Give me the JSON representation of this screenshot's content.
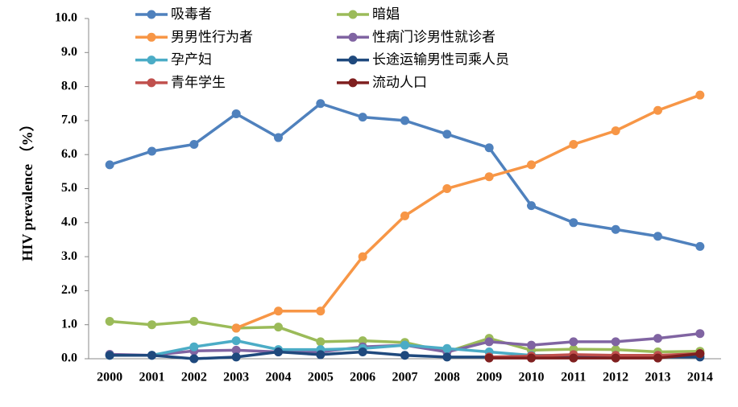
{
  "chart_data": {
    "type": "line",
    "y_label": "HIV prevalence （%）",
    "categories": [
      "2000",
      "2001",
      "2002",
      "2003",
      "2004",
      "2005",
      "2006",
      "2007",
      "2008",
      "2009",
      "2010",
      "2011",
      "2012",
      "2013",
      "2014"
    ],
    "ylim": [
      0,
      10
    ],
    "yticks": [
      {
        "value": 0,
        "label": "0.0"
      },
      {
        "value": 1,
        "label": "1.0"
      },
      {
        "value": 2,
        "label": "2.0"
      },
      {
        "value": 3,
        "label": "3.0"
      },
      {
        "value": 4,
        "label": "4.0"
      },
      {
        "value": 5,
        "label": "5.0"
      },
      {
        "value": 6,
        "label": "6.0"
      },
      {
        "value": 7,
        "label": "7.0"
      },
      {
        "value": 8,
        "label": "8.0"
      },
      {
        "value": 9,
        "label": "9.0"
      },
      {
        "value": 10,
        "label": "10.0"
      }
    ],
    "series": [
      {
        "name": "吸毒者",
        "color": "#4f81bd",
        "values": [
          5.7,
          6.1,
          6.3,
          7.2,
          6.5,
          7.5,
          7.1,
          7.0,
          6.6,
          6.2,
          4.5,
          4.0,
          3.8,
          3.6,
          3.3
        ]
      },
      {
        "name": "暗娼",
        "color": "#9bbb59",
        "values": [
          1.1,
          1.0,
          1.1,
          0.9,
          0.93,
          0.5,
          0.53,
          0.48,
          0.2,
          0.6,
          0.25,
          0.28,
          0.27,
          0.2,
          0.22
        ]
      },
      {
        "name": "男男性行为者",
        "color": "#f79646",
        "values": [
          null,
          null,
          null,
          0.9,
          1.4,
          1.4,
          3.0,
          4.2,
          5.0,
          5.35,
          5.7,
          6.3,
          6.7,
          7.3,
          7.75
        ]
      },
      {
        "name": "性病门诊男性就诊者",
        "color": "#8064a2",
        "values": [
          0.13,
          0.1,
          0.23,
          0.25,
          0.2,
          0.2,
          0.35,
          0.4,
          0.2,
          0.5,
          0.4,
          0.5,
          0.5,
          0.6,
          0.74
        ]
      },
      {
        "name": "孕产妇",
        "color": "#4bacc6",
        "values": [
          0.1,
          0.1,
          0.35,
          0.53,
          0.27,
          0.27,
          0.3,
          0.4,
          0.3,
          0.2,
          0.1,
          0.1,
          0.1,
          0.1,
          0.1
        ]
      },
      {
        "name": "长途运输男性司乘人员",
        "color": "#1f497d",
        "values": [
          0.1,
          0.1,
          0.0,
          0.05,
          0.2,
          0.12,
          0.2,
          0.1,
          0.05,
          0.05,
          0.05,
          0.05,
          0.05,
          0.05,
          0.05
        ]
      },
      {
        "name": "青年学生",
        "color": "#c0504d",
        "values": [
          null,
          null,
          null,
          null,
          null,
          null,
          null,
          null,
          null,
          0.05,
          0.08,
          0.12,
          0.1,
          0.1,
          0.15
        ]
      },
      {
        "name": "流动人口",
        "color": "#7f1f1f",
        "values": [
          null,
          null,
          null,
          null,
          null,
          null,
          null,
          null,
          null,
          0.02,
          0.02,
          0.02,
          0.02,
          0.02,
          0.15
        ]
      }
    ]
  }
}
